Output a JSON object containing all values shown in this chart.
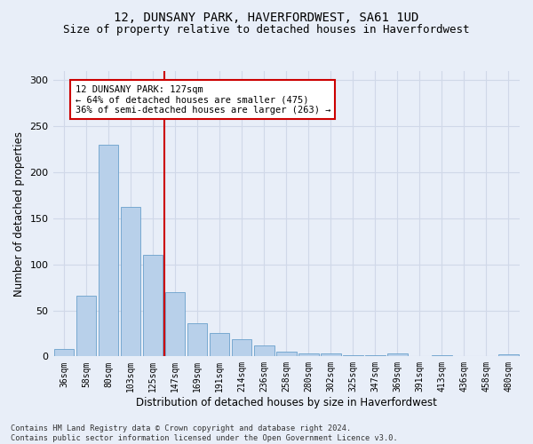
{
  "title": "12, DUNSANY PARK, HAVERFORDWEST, SA61 1UD",
  "subtitle": "Size of property relative to detached houses in Haverfordwest",
  "xlabel": "Distribution of detached houses by size in Haverfordwest",
  "ylabel": "Number of detached properties",
  "footnote": "Contains HM Land Registry data © Crown copyright and database right 2024.\nContains public sector information licensed under the Open Government Licence v3.0.",
  "categories": [
    "36sqm",
    "58sqm",
    "80sqm",
    "103sqm",
    "125sqm",
    "147sqm",
    "169sqm",
    "191sqm",
    "214sqm",
    "236sqm",
    "258sqm",
    "280sqm",
    "302sqm",
    "325sqm",
    "347sqm",
    "369sqm",
    "391sqm",
    "413sqm",
    "436sqm",
    "458sqm",
    "480sqm"
  ],
  "values": [
    8,
    66,
    230,
    162,
    110,
    70,
    36,
    25,
    19,
    12,
    5,
    3,
    3,
    1,
    1,
    3,
    0,
    1,
    0,
    0,
    2
  ],
  "bar_color": "#b8d0ea",
  "bar_edge_color": "#6aa0cc",
  "vline_color": "#cc0000",
  "vline_x": 4.5,
  "annotation_text": "12 DUNSANY PARK: 127sqm\n← 64% of detached houses are smaller (475)\n36% of semi-detached houses are larger (263) →",
  "annotation_box_color": "#ffffff",
  "annotation_box_edge_color": "#cc0000",
  "ylim": [
    0,
    310
  ],
  "yticks": [
    0,
    50,
    100,
    150,
    200,
    250,
    300
  ],
  "grid_color": "#d0d8e8",
  "bg_color": "#e8eef8",
  "title_fontsize": 10,
  "subtitle_fontsize": 9,
  "xlabel_fontsize": 8.5,
  "ylabel_fontsize": 8.5,
  "tick_fontsize": 8,
  "xtick_fontsize": 7
}
